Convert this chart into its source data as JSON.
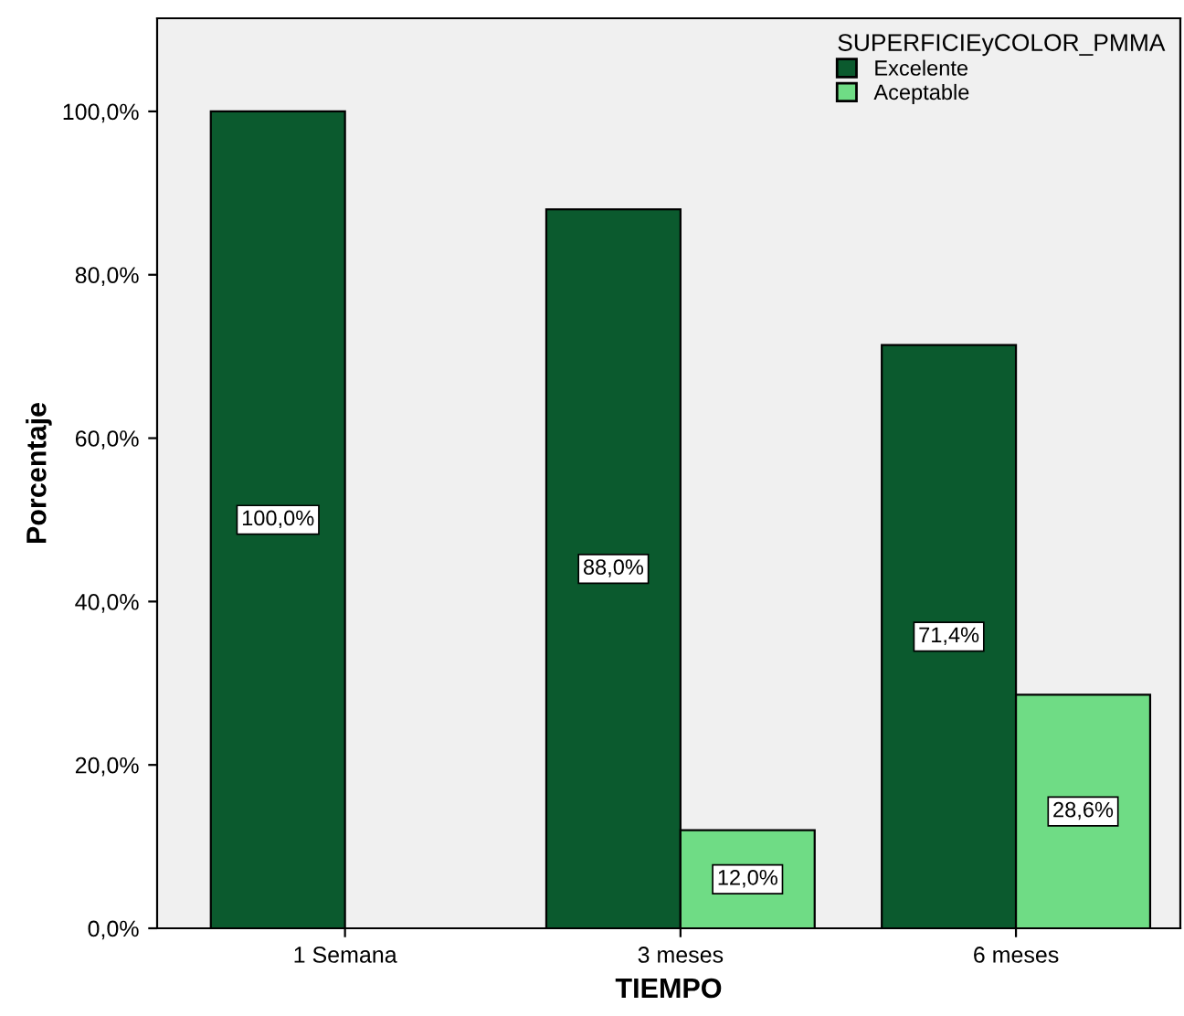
{
  "chart_data": {
    "type": "bar",
    "xlabel": "TIEMPO",
    "ylabel": "Porcentaje",
    "legend_title": "SUPERFICIEyCOLOR_PMMA",
    "legend": "top right",
    "grid": false,
    "categories": [
      "1 Semana",
      "3 meses",
      "6 meses"
    ],
    "series": [
      {
        "name": "Excelente",
        "color": "#0b5a2e",
        "values": [
          100.0,
          88.0,
          71.4
        ],
        "value_labels": [
          "100,0%",
          "88,0%",
          "71,4%"
        ]
      },
      {
        "name": "Aceptable",
        "color": "#6fdc85",
        "values": [
          null,
          12.0,
          28.6
        ],
        "value_labels": [
          null,
          "12,0%",
          "28,6%"
        ]
      }
    ],
    "ylim": [
      0,
      111.4
    ],
    "yticks": [
      {
        "value": 0,
        "label": "0,0%"
      },
      {
        "value": 20,
        "label": "20,0%"
      },
      {
        "value": 40,
        "label": "40,0%"
      },
      {
        "value": 60,
        "label": "60,0%"
      },
      {
        "value": 80,
        "label": "80,0%"
      },
      {
        "value": 100,
        "label": "100,0%"
      }
    ]
  }
}
